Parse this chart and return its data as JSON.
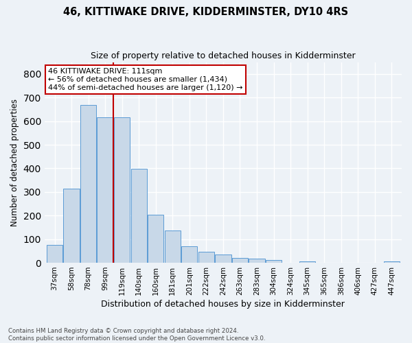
{
  "title1": "46, KITTIWAKE DRIVE, KIDDERMINSTER, DY10 4RS",
  "title2": "Size of property relative to detached houses in Kidderminster",
  "xlabel": "Distribution of detached houses by size in Kidderminster",
  "ylabel": "Number of detached properties",
  "categories": [
    "37sqm",
    "58sqm",
    "78sqm",
    "99sqm",
    "119sqm",
    "140sqm",
    "160sqm",
    "181sqm",
    "201sqm",
    "222sqm",
    "242sqm",
    "263sqm",
    "283sqm",
    "304sqm",
    "324sqm",
    "345sqm",
    "365sqm",
    "386sqm",
    "406sqm",
    "427sqm",
    "447sqm"
  ],
  "values": [
    75,
    315,
    668,
    615,
    615,
    398,
    205,
    136,
    70,
    46,
    36,
    20,
    18,
    11,
    0,
    6,
    0,
    0,
    0,
    0,
    7
  ],
  "bar_color": "#c8d8e8",
  "bar_edge_color": "#5b9bd5",
  "vline_x": 3.5,
  "vline_color": "#c00000",
  "annotation_text": "46 KITTIWAKE DRIVE: 111sqm\n← 56% of detached houses are smaller (1,434)\n44% of semi-detached houses are larger (1,120) →",
  "annotation_box_color": "#c00000",
  "footer": "Contains HM Land Registry data © Crown copyright and database right 2024.\nContains public sector information licensed under the Open Government Licence v3.0.",
  "ylim": [
    0,
    850
  ],
  "background_color": "#edf2f7",
  "grid_color": "#ffffff"
}
